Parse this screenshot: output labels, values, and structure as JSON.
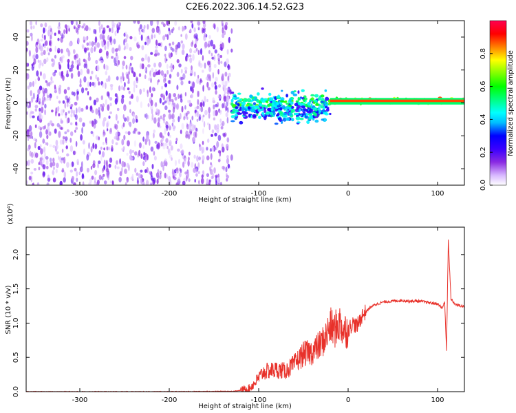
{
  "title": "C2E6.2022.306.14.52.G23",
  "chart_data": [
    {
      "type": "heatmap",
      "panel": "spectrogram",
      "xlabel": "Height of straight line (km)",
      "ylabel": "Frequency (Hz)",
      "xlim": [
        -360,
        130
      ],
      "ylim": [
        -50,
        50
      ],
      "xticks": [
        -300,
        -200,
        -100,
        0,
        100
      ],
      "yticks": [
        -40,
        -20,
        0,
        20,
        40
      ],
      "colorbar": {
        "label": "Normalized spectral amplitude",
        "ticks": [
          "0.0",
          "0.2",
          "0.4",
          "0.6",
          "0.8"
        ],
        "range": [
          0,
          1
        ],
        "colors": [
          "#ffffff",
          "#d8b8ff",
          "#8a2be2",
          "#3a00ff",
          "#0000ff",
          "#00bfff",
          "#00ffff",
          "#00ff80",
          "#00ff00",
          "#80ff00",
          "#ffff00",
          "#ff8000",
          "#ff0000",
          "#ff0050"
        ]
      },
      "regions": [
        {
          "x": [
            -360,
            -130
          ],
          "freq": [
            -50,
            50
          ],
          "pattern": "noise",
          "amplitude": [
            0.05,
            0.2
          ]
        },
        {
          "x": [
            -130,
            -20
          ],
          "freq": [
            -15,
            10
          ],
          "pattern": "signal-broad",
          "amplitude": [
            0.2,
            0.55
          ]
        },
        {
          "x": [
            -20,
            130
          ],
          "freq": [
            -1,
            3
          ],
          "pattern": "signal-narrow",
          "amplitude": [
            0.6,
            0.95
          ]
        }
      ]
    },
    {
      "type": "line",
      "panel": "snr",
      "xlabel": "Height of straight line (km)",
      "ylabel": "SNR (10 * v/v)",
      "yscale_label": "(x10⁴)",
      "xlim": [
        -360,
        130
      ],
      "ylim": [
        0,
        2.4
      ],
      "xticks": [
        -300,
        -200,
        -100,
        0,
        100
      ],
      "yticks": [
        0.0,
        0.5,
        1.0,
        1.5,
        2.0
      ],
      "ytick_labels": [
        "0.0",
        "0.5",
        "1.0",
        "1.5",
        "2.0"
      ],
      "color": "#e8312a",
      "series": [
        {
          "x": [
            -360,
            -300,
            -200,
            -130,
            -120,
            -110,
            -105,
            -100,
            -95,
            -90,
            -80,
            -70,
            -60,
            -50,
            -40,
            -30,
            -25,
            -20,
            -15,
            -10,
            -5,
            0,
            5,
            10,
            15,
            20,
            25,
            30,
            40,
            50,
            60,
            70,
            80,
            90,
            100,
            105,
            108,
            110,
            112,
            115,
            120,
            130
          ],
          "y": [
            0.0,
            0.0,
            0.0,
            0.005,
            0.02,
            0.05,
            0.12,
            0.2,
            0.28,
            0.3,
            0.32,
            0.3,
            0.4,
            0.55,
            0.58,
            0.7,
            0.8,
            0.95,
            0.9,
            1.0,
            0.9,
            0.9,
            1.0,
            0.95,
            1.1,
            1.17,
            1.23,
            1.27,
            1.31,
            1.32,
            1.33,
            1.32,
            1.32,
            1.3,
            1.28,
            1.22,
            1.3,
            0.6,
            2.2,
            1.35,
            1.27,
            1.24
          ]
        }
      ]
    }
  ]
}
